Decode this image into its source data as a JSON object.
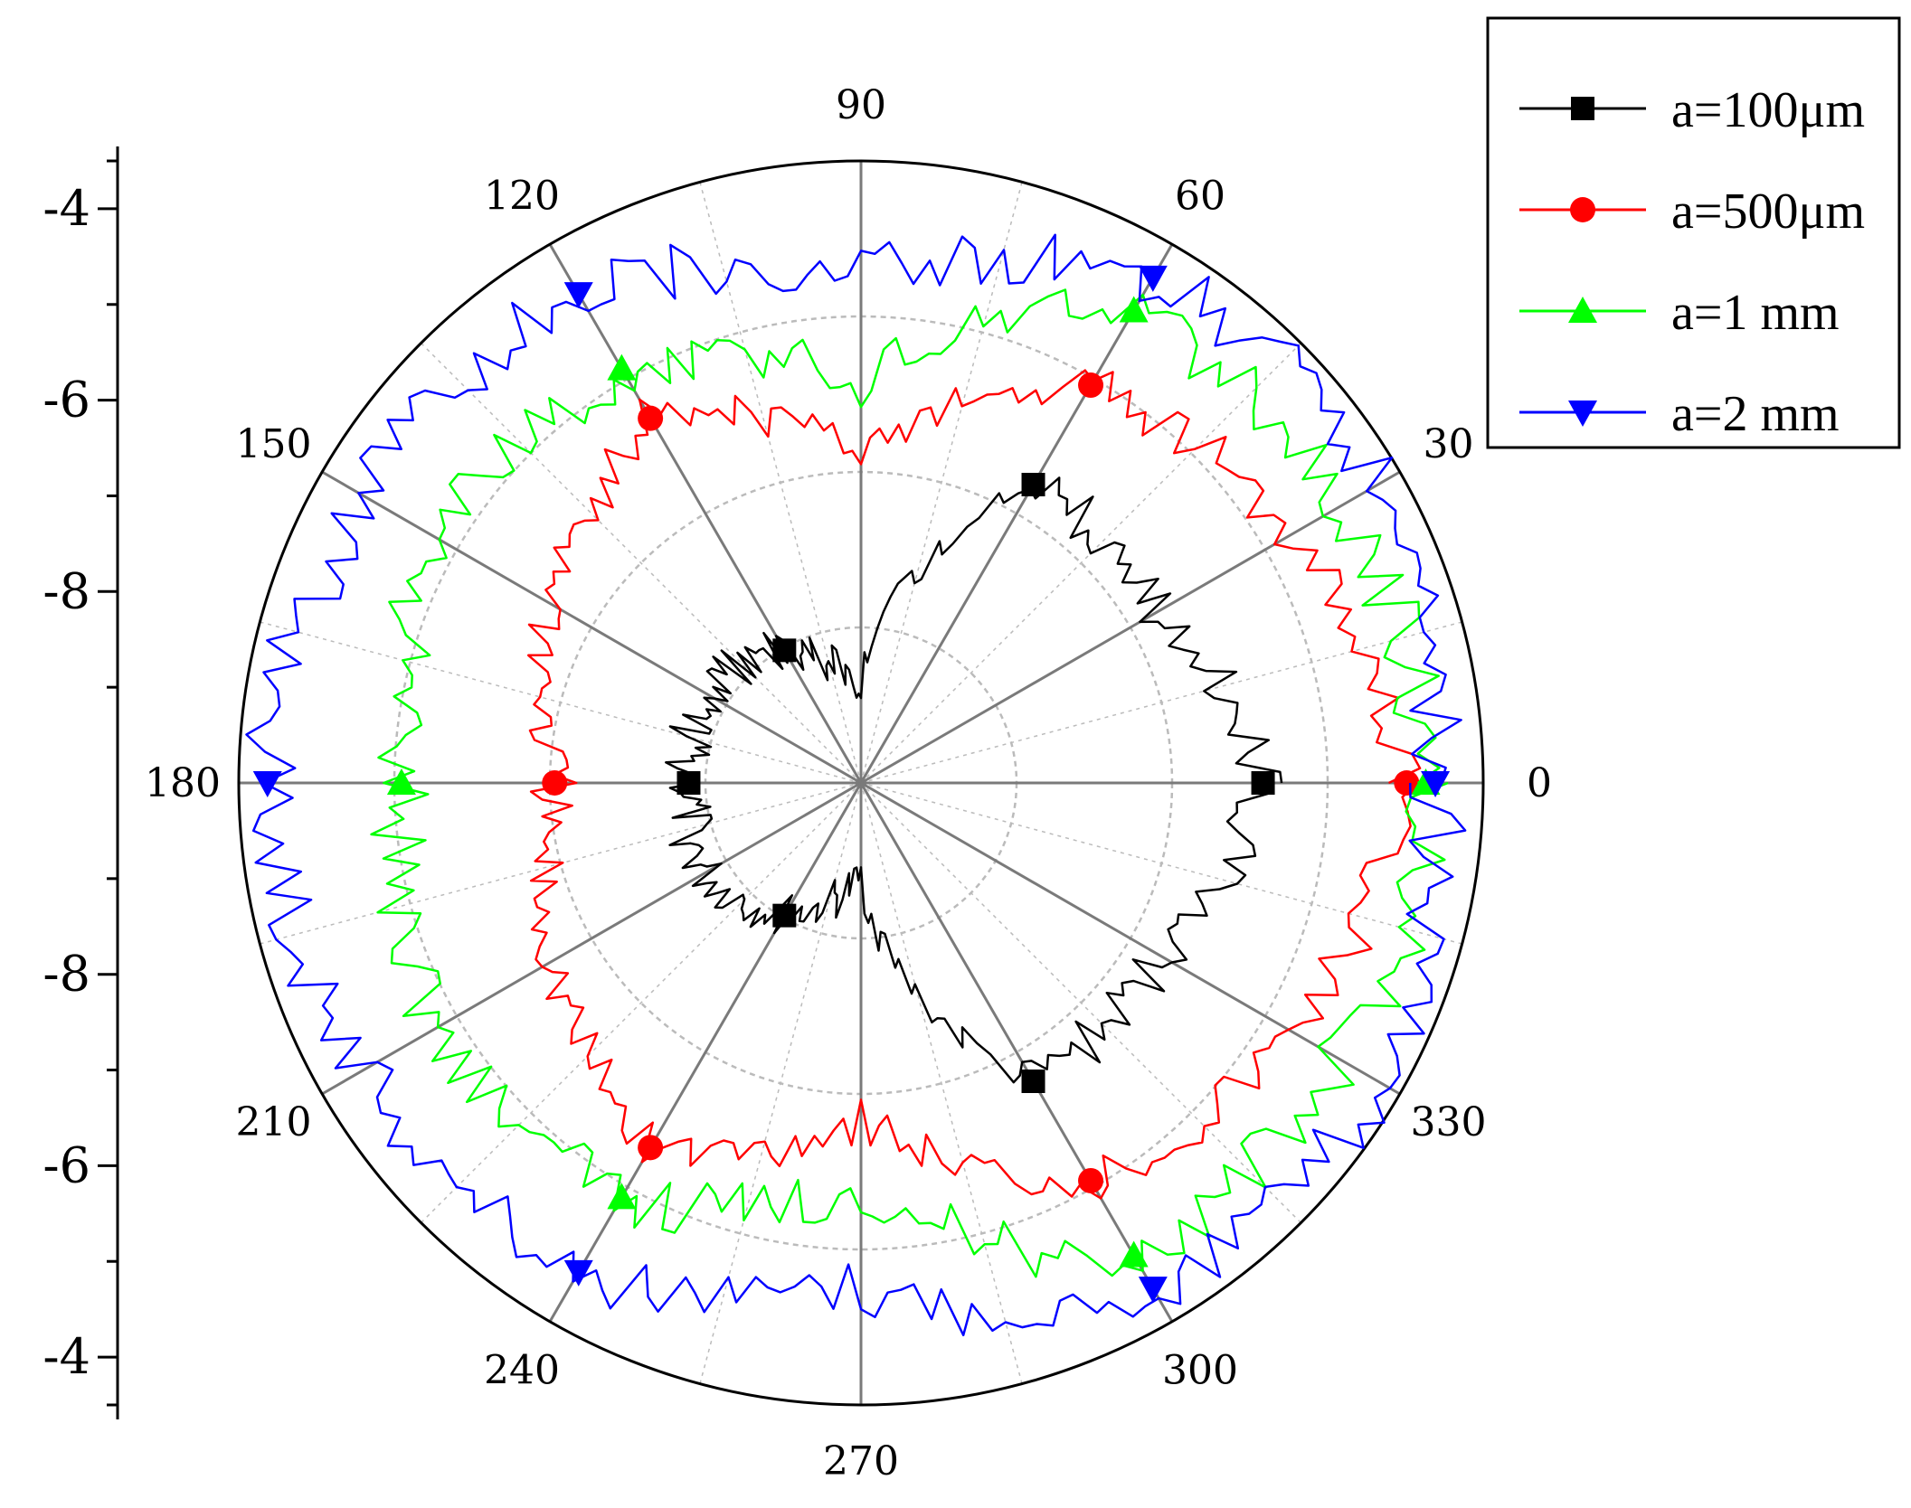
{
  "chart_data": {
    "type": "polar-line",
    "angle_unit": "degrees",
    "angle_ticks": [
      "0",
      "30",
      "60",
      "90",
      "120",
      "150",
      "180",
      "210",
      "240",
      "270",
      "300",
      "330"
    ],
    "radial_axis": {
      "tick_labels": [
        "-4",
        "-6",
        "-8",
        "-8",
        "-6",
        "-4"
      ],
      "min": -10,
      "max": -3.5
    },
    "grid": true,
    "legend_placement": "top-right",
    "series": [
      {
        "name": "a=100μm",
        "color": "#000000",
        "marker": "square",
        "base": -5.8,
        "noise": 0.25,
        "anchors": [
          [
            0,
            -5.8
          ],
          [
            30,
            -6.4
          ],
          [
            60,
            -6.4
          ],
          [
            90,
            -9.0
          ],
          [
            120,
            -8.4
          ],
          [
            150,
            -8.1
          ],
          [
            180,
            -8.2
          ],
          [
            210,
            -8.1
          ],
          [
            240,
            -8.4
          ],
          [
            270,
            -9.0
          ],
          [
            300,
            -6.4
          ],
          [
            330,
            -6.4
          ],
          [
            360,
            -5.8
          ]
        ],
        "markers_at": [
          0,
          60,
          120,
          180,
          240,
          300
        ]
      },
      {
        "name": "a=500μm",
        "color": "#ff0000",
        "marker": "circle",
        "base": -4.3,
        "noise": 0.25,
        "anchors": [
          [
            0,
            -4.3
          ],
          [
            30,
            -4.8
          ],
          [
            60,
            -5.2
          ],
          [
            90,
            -6.5
          ],
          [
            120,
            -5.6
          ],
          [
            150,
            -6.3
          ],
          [
            180,
            -6.8
          ],
          [
            210,
            -6.3
          ],
          [
            240,
            -5.6
          ],
          [
            270,
            -6.5
          ],
          [
            300,
            -5.2
          ],
          [
            330,
            -4.8
          ],
          [
            360,
            -4.3
          ]
        ],
        "markers_at": [
          0,
          60,
          120,
          180,
          240,
          300
        ]
      },
      {
        "name": "a=1 mm",
        "color": "#00ff00",
        "marker": "triangle-up",
        "base": -4.1,
        "noise": 0.3,
        "anchors": [
          [
            0,
            -4.1
          ],
          [
            30,
            -4.2
          ],
          [
            60,
            -4.3
          ],
          [
            90,
            -5.8
          ],
          [
            120,
            -5.0
          ],
          [
            150,
            -4.9
          ],
          [
            180,
            -5.2
          ],
          [
            210,
            -4.9
          ],
          [
            240,
            -5.0
          ],
          [
            270,
            -5.8
          ],
          [
            300,
            -4.3
          ],
          [
            330,
            -4.2
          ],
          [
            360,
            -4.1
          ]
        ],
        "markers_at": [
          0,
          60,
          120,
          180,
          240,
          300
        ]
      },
      {
        "name": "a=2 mm",
        "color": "#0000ff",
        "marker": "triangle-down",
        "base": -3.7,
        "noise": 0.3,
        "anchors": [
          [
            0,
            -4.0
          ],
          [
            30,
            -3.7
          ],
          [
            60,
            -3.9
          ],
          [
            90,
            -4.7
          ],
          [
            120,
            -4.1
          ],
          [
            150,
            -4.0
          ],
          [
            180,
            -3.8
          ],
          [
            210,
            -4.0
          ],
          [
            240,
            -4.1
          ],
          [
            270,
            -4.7
          ],
          [
            300,
            -3.9
          ],
          [
            330,
            -3.7
          ],
          [
            360,
            -4.0
          ]
        ],
        "markers_at": [
          0,
          60,
          120,
          180,
          240,
          300
        ]
      }
    ]
  },
  "colors": {
    "grid": "#bbbbbb",
    "spoke": "#7a7a7a",
    "axis": "#000000"
  }
}
